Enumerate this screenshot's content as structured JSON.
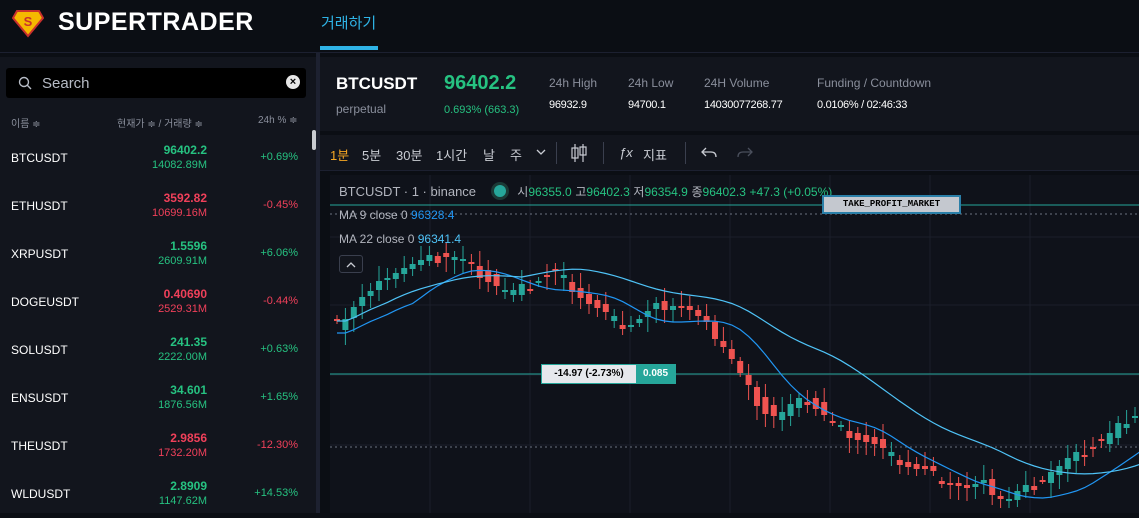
{
  "app": {
    "brand": "SUPERTRADER",
    "nav_tab": "거래하기"
  },
  "sidebar": {
    "search_placeholder": "Search",
    "col_name": "이름 ≑",
    "col_price": "현재가 ≑  /  거래량 ≑",
    "col_change": "24h % ≑",
    "rows": [
      {
        "symbol": "BTCUSDT",
        "price": "96402.2",
        "volume": "14082.89M",
        "change": "+0.69%",
        "dir": "up"
      },
      {
        "symbol": "ETHUSDT",
        "price": "3592.82",
        "volume": "10699.16M",
        "change": "-0.45%",
        "dir": "down"
      },
      {
        "symbol": "XRPUSDT",
        "price": "1.5596",
        "volume": "2609.91M",
        "change": "+6.06%",
        "dir": "up"
      },
      {
        "symbol": "DOGEUSDT",
        "price": "0.40690",
        "volume": "2529.31M",
        "change": "-0.44%",
        "dir": "down"
      },
      {
        "symbol": "SOLUSDT",
        "price": "241.35",
        "volume": "2222.00M",
        "change": "+0.63%",
        "dir": "up"
      },
      {
        "symbol": "ENSUSDT",
        "price": "34.601",
        "volume": "1876.56M",
        "change": "+1.65%",
        "dir": "up"
      },
      {
        "symbol": "THEUSDT",
        "price": "2.9856",
        "volume": "1732.20M",
        "change": "-12.30%",
        "dir": "down"
      },
      {
        "symbol": "WLDUSDT",
        "price": "2.8909",
        "volume": "1147.62M",
        "change": "+14.53%",
        "dir": "up"
      }
    ]
  },
  "header": {
    "symbol": "BTCUSDT",
    "subtitle": "perpetual",
    "price": "96402.2",
    "change": "0.693% (663.3)",
    "stats": [
      {
        "label": "24h High",
        "value": "96932.9"
      },
      {
        "label": "24h Low",
        "value": "94700.1"
      },
      {
        "label": "24H Volume",
        "value": "14030077268.77"
      },
      {
        "label": "Funding / Countdown",
        "value": "0.0106% / 02:46:33"
      }
    ]
  },
  "toolbar": {
    "timeframes": [
      "1분",
      "5분",
      "30분",
      "1시간",
      "날",
      "주"
    ],
    "active_timeframe": "1분",
    "indicator_label": "지표"
  },
  "chart": {
    "title": "BTCUSDT · 1 · binance",
    "ohlc": {
      "o_label": "시",
      "o": "96355.0",
      "h_label": "고",
      "h": "96402.3",
      "l_label": "저",
      "l": "96354.9",
      "c_label": "종",
      "c": "96402.3",
      "change": "+47.3 (+0.05%)"
    },
    "ma9_label": "MA 9 close 0",
    "ma9_value": "96328.4",
    "ma22_label": "MA 22 close 0",
    "ma22_value": "96341.4",
    "tp_label": "TAKE_PROFIT_MARKET",
    "pos_pnl": "-14.97 (-2.73%)",
    "pos_qty": "0.085",
    "colors": {
      "up": "#26a69a",
      "down": "#ef5350",
      "ma9": "#2196f3",
      "ma22": "#4fc3f7",
      "accent": "#2fb3e6"
    }
  }
}
